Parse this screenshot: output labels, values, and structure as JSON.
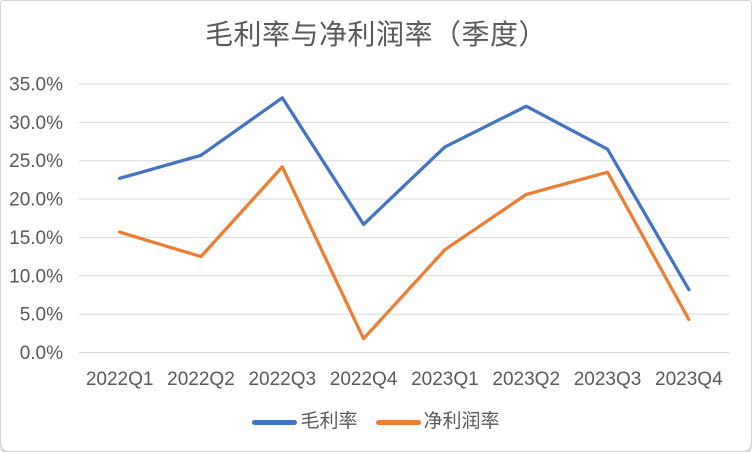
{
  "chart_data": {
    "type": "line",
    "title": "毛利率与净利润率（季度）",
    "categories": [
      "2022Q1",
      "2022Q2",
      "2022Q3",
      "2022Q4",
      "2023Q1",
      "2023Q2",
      "2023Q3",
      "2023Q4"
    ],
    "series": [
      {
        "name": "毛利率",
        "color": "#4472C4",
        "values": [
          22.7,
          25.7,
          33.2,
          16.7,
          26.8,
          32.1,
          26.5,
          8.2
        ]
      },
      {
        "name": "净利润率",
        "color": "#ED7D31",
        "values": [
          15.7,
          12.5,
          24.2,
          1.8,
          13.4,
          20.6,
          23.5,
          4.3
        ]
      }
    ],
    "ylim": [
      0,
      35
    ],
    "y_tick_step": 5,
    "y_tick_labels": [
      "0.0%",
      "5.0%",
      "10.0%",
      "15.0%",
      "20.0%",
      "25.0%",
      "30.0%",
      "35.0%"
    ],
    "xlabel": "",
    "ylabel": "",
    "grid": "horizontal",
    "legend_position": "bottom"
  },
  "styles": {
    "grid_color": "#D9D9D9",
    "axis_text_color": "#595959",
    "title_color": "#595959",
    "background": "#FFFFFF",
    "line_width": 3.25
  }
}
